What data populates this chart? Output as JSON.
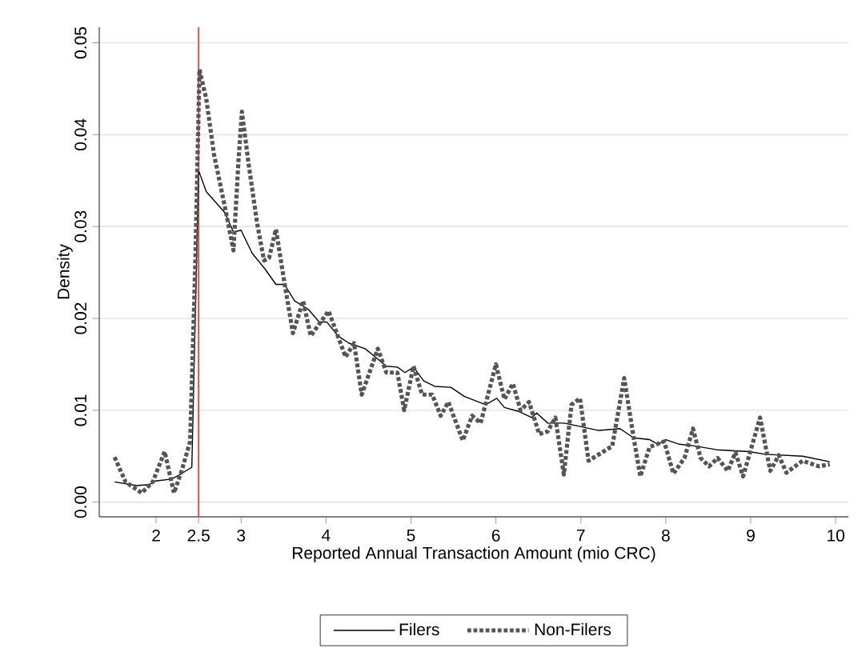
{
  "chart_data": {
    "type": "line",
    "xlabel": "Reported Annual Transaction Amount (mio CRC)",
    "ylabel": "Density",
    "xlim": [
      1.33,
      10.15
    ],
    "ylim": [
      -0.0016,
      0.0517
    ],
    "xticks": [
      2,
      2.5,
      3,
      4,
      5,
      6,
      7,
      8,
      9,
      10
    ],
    "yticks": [
      {
        "value": 0,
        "label": "0.00"
      },
      {
        "value": 0.01,
        "label": "0.01"
      },
      {
        "value": 0.02,
        "label": "0.02"
      },
      {
        "value": 0.03,
        "label": "0.03"
      },
      {
        "value": 0.04,
        "label": "0.04"
      },
      {
        "value": 0.05,
        "label": "0.05"
      }
    ],
    "grid": "y",
    "legend": "bottom",
    "ref_lines": [
      {
        "axis": "x",
        "value": 2.5,
        "color": "#e8423f"
      }
    ],
    "series": [
      {
        "name": "Filers",
        "color": "#000000",
        "line_style": "solid",
        "x": [
          1.51,
          1.77,
          1.92,
          1.99,
          2.18,
          2.3,
          2.42,
          2.5,
          2.59,
          2.81,
          2.91,
          3.0,
          3.13,
          3.28,
          3.41,
          3.51,
          3.63,
          3.79,
          3.92,
          4.01,
          4.14,
          4.27,
          4.46,
          4.58,
          4.71,
          4.84,
          4.93,
          5.03,
          5.15,
          5.28,
          5.47,
          5.63,
          5.88,
          6.01,
          6.1,
          6.26,
          6.42,
          6.48,
          6.61,
          6.8,
          6.96,
          7.21,
          7.46,
          7.62,
          7.81,
          7.91,
          8.0,
          8.16,
          8.35,
          8.6,
          8.98,
          9.17,
          9.61,
          9.93
        ],
        "values": [
          0.0022,
          0.0018,
          0.0019,
          0.0023,
          0.0025,
          0.0031,
          0.0038,
          0.0361,
          0.0338,
          0.0315,
          0.0294,
          0.0296,
          0.0271,
          0.0254,
          0.0237,
          0.0237,
          0.0219,
          0.021,
          0.0196,
          0.0196,
          0.0181,
          0.0173,
          0.0167,
          0.0158,
          0.0148,
          0.0147,
          0.0141,
          0.0147,
          0.0132,
          0.0126,
          0.0125,
          0.0115,
          0.0106,
          0.0113,
          0.0103,
          0.0099,
          0.0092,
          0.0097,
          0.0086,
          0.0086,
          0.0083,
          0.0078,
          0.008,
          0.007,
          0.0068,
          0.0063,
          0.0068,
          0.0063,
          0.0061,
          0.0057,
          0.0055,
          0.0052,
          0.005,
          0.0044
        ]
      },
      {
        "name": "Non-Filers",
        "color": "#555555",
        "line_style": "dotted",
        "x": [
          1.51,
          1.64,
          1.83,
          1.96,
          2.1,
          2.21,
          2.3,
          2.4,
          2.46,
          2.51,
          2.59,
          2.68,
          2.81,
          2.91,
          2.97,
          3.01,
          3.09,
          3.19,
          3.27,
          3.33,
          3.41,
          3.51,
          3.61,
          3.73,
          3.82,
          4.03,
          4.23,
          4.33,
          4.42,
          4.61,
          4.71,
          4.84,
          4.92,
          5.03,
          5.13,
          5.25,
          5.35,
          5.44,
          5.61,
          5.72,
          5.82,
          6.0,
          6.1,
          6.2,
          6.29,
          6.39,
          6.51,
          6.61,
          6.7,
          6.8,
          6.89,
          6.99,
          7.09,
          7.37,
          7.51,
          7.62,
          7.7,
          7.81,
          7.98,
          8.09,
          8.22,
          8.32,
          8.41,
          8.51,
          8.61,
          8.73,
          8.82,
          8.91,
          9.11,
          9.23,
          9.33,
          9.42,
          9.61,
          9.8,
          9.93
        ],
        "values": [
          0.0049,
          0.0022,
          0.001,
          0.0022,
          0.0055,
          0.001,
          0.0034,
          0.0066,
          0.0257,
          0.0471,
          0.0439,
          0.0379,
          0.0321,
          0.0274,
          0.0373,
          0.0425,
          0.0367,
          0.0303,
          0.0263,
          0.0266,
          0.0297,
          0.0239,
          0.0184,
          0.0219,
          0.0181,
          0.0208,
          0.0158,
          0.0173,
          0.0117,
          0.0167,
          0.0141,
          0.0141,
          0.01,
          0.0148,
          0.0117,
          0.0117,
          0.0094,
          0.0109,
          0.0067,
          0.0094,
          0.0086,
          0.015,
          0.0112,
          0.0129,
          0.01,
          0.0109,
          0.0074,
          0.0077,
          0.0092,
          0.003,
          0.0106,
          0.0113,
          0.0045,
          0.0061,
          0.0135,
          0.0071,
          0.0028,
          0.006,
          0.0066,
          0.0031,
          0.0048,
          0.008,
          0.0048,
          0.0039,
          0.0048,
          0.0034,
          0.0054,
          0.0028,
          0.0092,
          0.0034,
          0.0051,
          0.0032,
          0.0045,
          0.0039,
          0.0041
        ]
      }
    ]
  }
}
